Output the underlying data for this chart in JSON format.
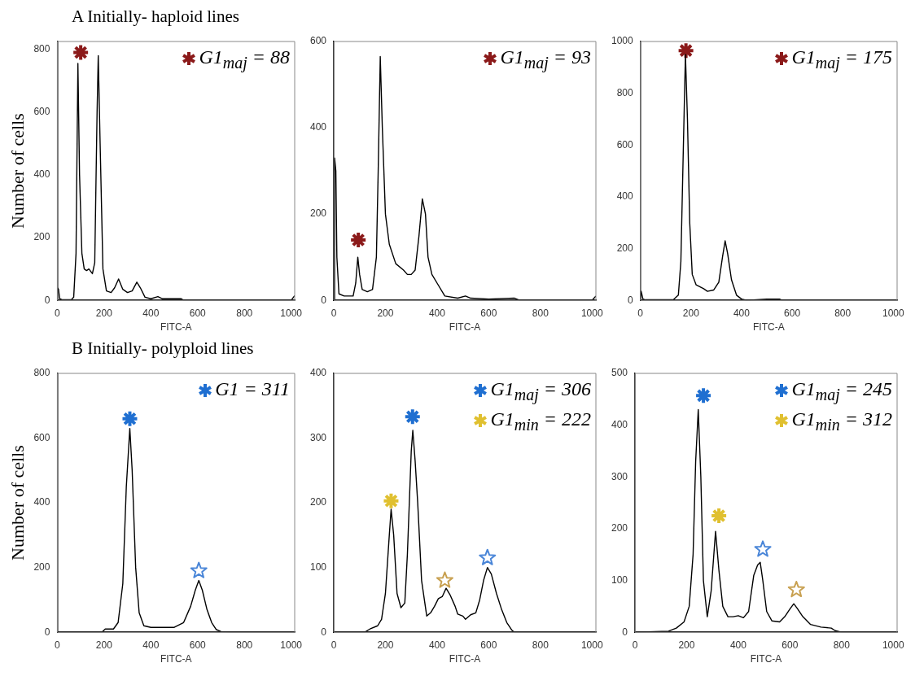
{
  "chart_data": [
    {
      "type": "line",
      "title": "A Initially- haploid lines",
      "xlabel": "FITC-A",
      "ylabel": "Number of cells",
      "xlim": [
        0,
        1015
      ],
      "ylim": [
        0,
        825
      ],
      "xticks": [
        0,
        200,
        400,
        600,
        800,
        1000
      ],
      "yticks": [
        0,
        200,
        400,
        600,
        800
      ],
      "grid": false,
      "legend": "top right",
      "series": [
        {
          "color": "#000000",
          "x": [
            0,
            5,
            10,
            20,
            60,
            70,
            80,
            88,
            95,
            105,
            115,
            125,
            135,
            150,
            160,
            170,
            175,
            183,
            195,
            210,
            230,
            245,
            262,
            280,
            300,
            320,
            340,
            355,
            375,
            400,
            430,
            450,
            530,
            540,
            1000,
            1015
          ],
          "values": [
            40,
            35,
            5,
            2,
            2,
            10,
            150,
            755,
            400,
            150,
            100,
            95,
            100,
            85,
            120,
            600,
            780,
            500,
            100,
            30,
            25,
            40,
            68,
            35,
            25,
            30,
            58,
            40,
            10,
            5,
            12,
            5,
            5,
            0,
            0,
            15
          ]
        },
        {
          "type": "scatter",
          "marker": "cross",
          "name": "G1$_{maj}$ = 88",
          "color": "#8b1a1a",
          "x": [
            100
          ],
          "values": [
            790
          ]
        }
      ]
    },
    {
      "type": "line",
      "xlabel": "FITC-A",
      "xlim": [
        0,
        1015
      ],
      "ylim": [
        0,
        600
      ],
      "xticks": [
        0,
        200,
        400,
        600,
        800,
        1000
      ],
      "yticks": [
        0,
        200,
        400,
        600
      ],
      "grid": false,
      "legend": "top right",
      "series": [
        {
          "color": "#000000",
          "x": [
            0,
            3,
            8,
            12,
            20,
            40,
            60,
            75,
            85,
            93,
            100,
            110,
            130,
            150,
            165,
            172,
            180,
            188,
            200,
            215,
            240,
            270,
            285,
            300,
            315,
            330,
            343,
            355,
            365,
            380,
            400,
            430,
            480,
            510,
            530,
            600,
            700,
            720,
            1000,
            1015
          ],
          "values": [
            0,
            330,
            300,
            100,
            15,
            10,
            10,
            10,
            40,
            100,
            60,
            25,
            20,
            25,
            100,
            300,
            565,
            400,
            200,
            130,
            85,
            70,
            60,
            60,
            70,
            150,
            235,
            200,
            100,
            60,
            40,
            10,
            5,
            10,
            5,
            3,
            5,
            0,
            0,
            10
          ]
        },
        {
          "type": "scatter",
          "marker": "cross",
          "name": "G1$_{maj}$ = 93",
          "color": "#8b1a1a",
          "x": [
            95
          ],
          "values": [
            140
          ]
        }
      ]
    },
    {
      "type": "line",
      "xlabel": "FITC-A",
      "xlim": [
        0,
        1015
      ],
      "ylim": [
        0,
        1000
      ],
      "xticks": [
        0,
        200,
        400,
        600,
        800,
        1000
      ],
      "yticks": [
        0,
        200,
        400,
        600,
        800,
        1000
      ],
      "grid": false,
      "legend": "top right",
      "series": [
        {
          "color": "#000000",
          "x": [
            0,
            3,
            10,
            20,
            130,
            150,
            160,
            170,
            178,
            186,
            195,
            205,
            220,
            250,
            265,
            290,
            310,
            325,
            335,
            345,
            360,
            380,
            400,
            420,
            500,
            550,
            560,
            1015
          ],
          "values": [
            0,
            35,
            5,
            2,
            2,
            20,
            150,
            600,
            950,
            700,
            300,
            100,
            60,
            45,
            35,
            40,
            70,
            170,
            230,
            180,
            80,
            20,
            5,
            0,
            5,
            5,
            0,
            0
          ]
        },
        {
          "type": "scatter",
          "marker": "cross",
          "name": "G1$_{maj}$ = 175",
          "color": "#8b1a1a",
          "x": [
            180
          ],
          "values": [
            965
          ]
        }
      ]
    },
    {
      "type": "line",
      "title": "B Initially- polyploid lines",
      "xlabel": "FITC-A",
      "ylabel": "Number of cells",
      "xlim": [
        0,
        1015
      ],
      "ylim": [
        0,
        800
      ],
      "xticks": [
        0,
        200,
        400,
        600,
        800,
        1000
      ],
      "yticks": [
        0,
        200,
        400,
        600,
        800
      ],
      "grid": false,
      "legend": "top right",
      "series": [
        {
          "color": "#000000",
          "x": [
            0,
            190,
            205,
            240,
            260,
            280,
            295,
            310,
            320,
            335,
            350,
            370,
            400,
            450,
            500,
            540,
            570,
            590,
            605,
            620,
            640,
            660,
            680,
            700,
            740,
            1015
          ],
          "values": [
            0,
            0,
            10,
            10,
            30,
            150,
            450,
            630,
            500,
            200,
            60,
            20,
            15,
            15,
            15,
            30,
            80,
            130,
            160,
            130,
            70,
            30,
            8,
            2,
            0,
            0
          ]
        },
        {
          "type": "scatter",
          "marker": "cross",
          "name": "G1 = 311",
          "color": "#1f6fd1",
          "x": [
            310
          ],
          "values": [
            660
          ]
        },
        {
          "type": "scatter",
          "marker": "star",
          "color": "#4a86d8",
          "x": [
            605
          ],
          "values": [
            190
          ]
        }
      ]
    },
    {
      "type": "line",
      "xlabel": "FITC-A",
      "xlim": [
        0,
        1015
      ],
      "ylim": [
        0,
        400
      ],
      "xticks": [
        0,
        200,
        400,
        600,
        800,
        1000
      ],
      "yticks": [
        0,
        100,
        200,
        300,
        400
      ],
      "grid": false,
      "legend": "top right",
      "series": [
        {
          "color": "#000000",
          "x": [
            0,
            120,
            140,
            170,
            185,
            200,
            215,
            222,
            232,
            245,
            260,
            275,
            285,
            300,
            306,
            315,
            325,
            340,
            360,
            375,
            390,
            405,
            420,
            435,
            450,
            470,
            480,
            500,
            510,
            530,
            550,
            565,
            580,
            595,
            610,
            630,
            650,
            670,
            690,
            700,
            1015
          ],
          "values": [
            0,
            0,
            5,
            10,
            20,
            60,
            150,
            190,
            150,
            60,
            38,
            45,
            120,
            280,
            312,
            265,
            200,
            80,
            25,
            30,
            40,
            52,
            55,
            68,
            58,
            40,
            28,
            25,
            20,
            27,
            30,
            50,
            80,
            100,
            90,
            60,
            35,
            15,
            3,
            0,
            0
          ]
        },
        {
          "type": "scatter",
          "marker": "cross",
          "name": "G1$_{maj}$ = 306",
          "color": "#1f6fd1",
          "x": [
            305
          ],
          "values": [
            333
          ]
        },
        {
          "type": "scatter",
          "marker": "cross",
          "name": "G1$_{min}$ = 222",
          "color": "#e0c030",
          "x": [
            222
          ],
          "values": [
            203
          ]
        },
        {
          "type": "scatter",
          "marker": "star",
          "color": "#c8a050",
          "x": [
            430
          ],
          "values": [
            80
          ]
        },
        {
          "type": "scatter",
          "marker": "star",
          "color": "#4a86d8",
          "x": [
            595
          ],
          "values": [
            115
          ]
        }
      ]
    },
    {
      "type": "line",
      "xlabel": "FITC-A",
      "xlim": [
        0,
        1015
      ],
      "ylim": [
        0,
        500
      ],
      "xticks": [
        0,
        200,
        400,
        600,
        800,
        1000
      ],
      "yticks": [
        0,
        100,
        200,
        300,
        400,
        500
      ],
      "grid": false,
      "legend": "top right",
      "series": [
        {
          "color": "#000000",
          "x": [
            0,
            130,
            160,
            190,
            210,
            225,
            235,
            245,
            255,
            265,
            280,
            295,
            312,
            325,
            340,
            360,
            380,
            400,
            420,
            440,
            460,
            475,
            485,
            495,
            510,
            530,
            560,
            580,
            600,
            615,
            630,
            650,
            680,
            720,
            760,
            775,
            800,
            1015
          ],
          "values": [
            0,
            2,
            8,
            20,
            50,
            150,
            330,
            430,
            300,
            100,
            30,
            80,
            195,
            120,
            50,
            30,
            30,
            32,
            28,
            40,
            110,
            130,
            135,
            100,
            40,
            22,
            20,
            30,
            45,
            55,
            45,
            30,
            15,
            10,
            8,
            3,
            0,
            0
          ]
        },
        {
          "type": "scatter",
          "marker": "cross",
          "name": "G1$_{maj}$ = 245",
          "color": "#1f6fd1",
          "x": [
            265
          ],
          "values": [
            457
          ]
        },
        {
          "type": "scatter",
          "marker": "cross",
          "name": "G1$_{min}$ = 312",
          "color": "#e0c030",
          "x": [
            325
          ],
          "values": [
            225
          ]
        },
        {
          "type": "scatter",
          "marker": "star",
          "color": "#4a86d8",
          "x": [
            495
          ],
          "values": [
            160
          ]
        },
        {
          "type": "scatter",
          "marker": "star",
          "color": "#c8a050",
          "x": [
            625
          ],
          "values": [
            82
          ]
        }
      ]
    }
  ]
}
